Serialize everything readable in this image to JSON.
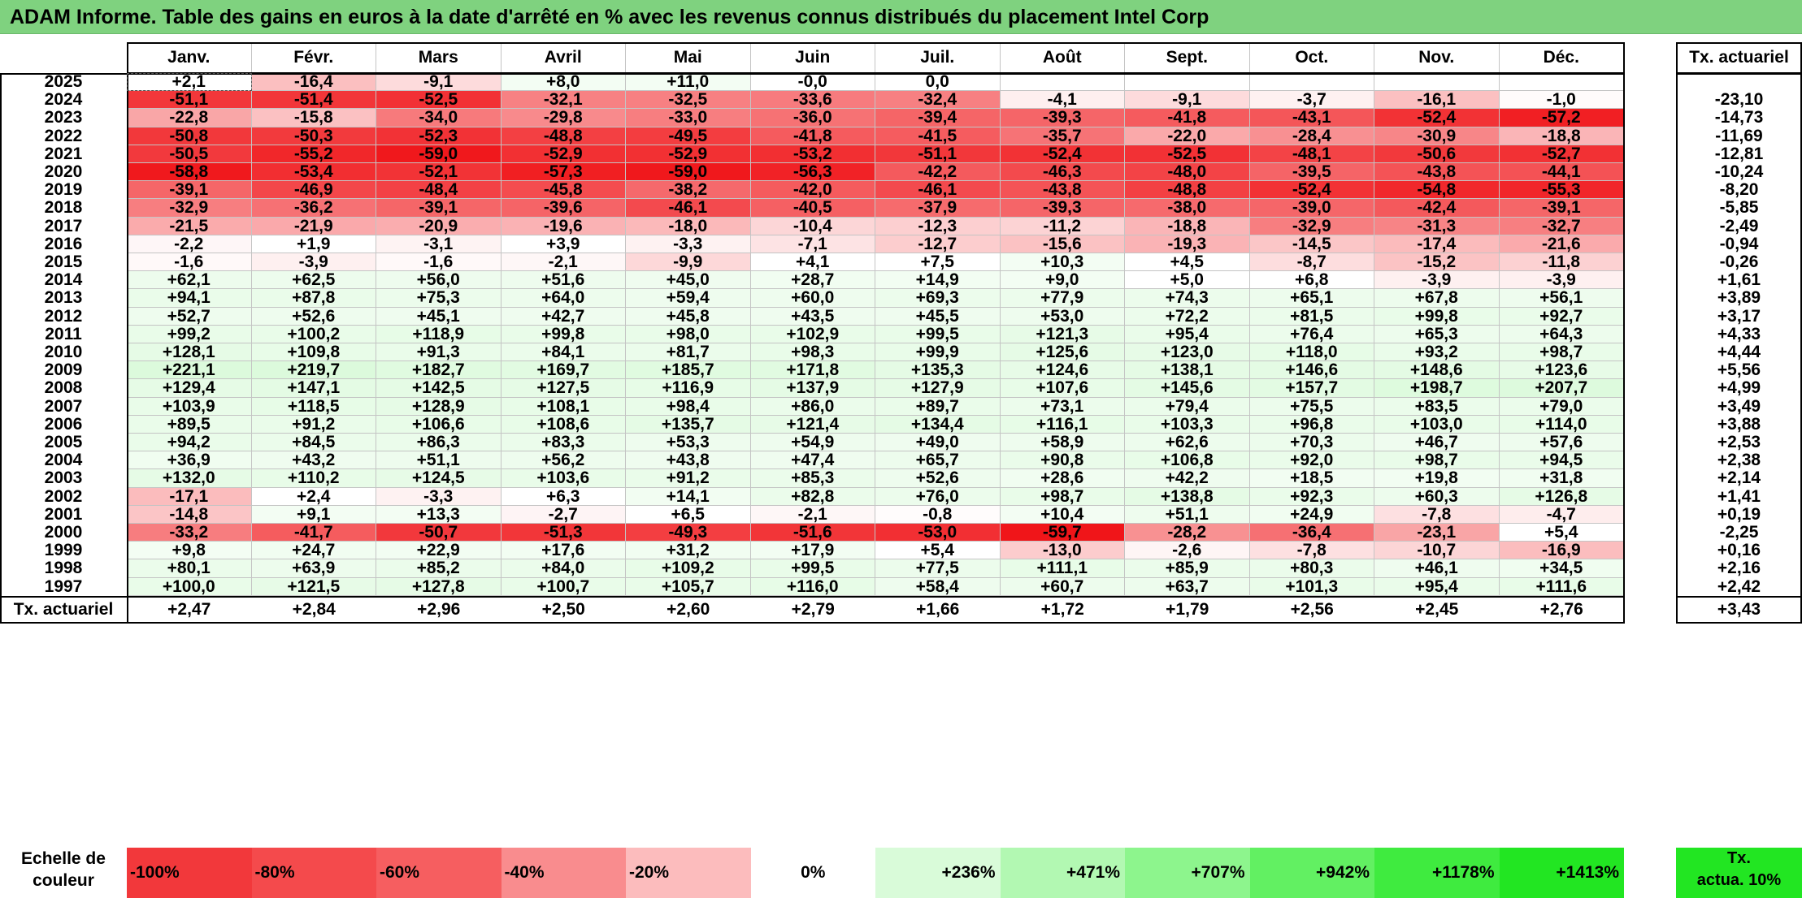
{
  "title": "ADAM Informe. Table des gains en euros à la date d'arrêté en % avec les revenus connus distribués du placement Intel Corp",
  "months": [
    "Janv.",
    "Févr.",
    "Mars",
    "Avril",
    "Mai",
    "Juin",
    "Juil.",
    "Août",
    "Sept.",
    "Oct.",
    "Nov.",
    "Déc."
  ],
  "tx_header": "Tx. actuariel",
  "rows": [
    {
      "year": "2025",
      "values": [
        "+2,1",
        "-16,4",
        "-9,1",
        "+8,0",
        "+11,0",
        "-0,0",
        "0,0",
        "",
        "",
        "",
        "",
        ""
      ],
      "tx": ""
    },
    {
      "year": "2024",
      "values": [
        "-51,1",
        "-51,4",
        "-52,5",
        "-32,1",
        "-32,5",
        "-33,6",
        "-32,4",
        "-4,1",
        "-9,1",
        "-3,7",
        "-16,1",
        "-1,0"
      ],
      "tx": "-23,10"
    },
    {
      "year": "2023",
      "values": [
        "-22,8",
        "-15,8",
        "-34,0",
        "-29,8",
        "-33,0",
        "-36,0",
        "-39,4",
        "-39,3",
        "-41,8",
        "-43,1",
        "-52,4",
        "-57,2"
      ],
      "tx": "-14,73"
    },
    {
      "year": "2022",
      "values": [
        "-50,8",
        "-50,3",
        "-52,3",
        "-48,8",
        "-49,5",
        "-41,8",
        "-41,5",
        "-35,7",
        "-22,0",
        "-28,4",
        "-30,9",
        "-18,8"
      ],
      "tx": "-11,69"
    },
    {
      "year": "2021",
      "values": [
        "-50,5",
        "-55,2",
        "-59,0",
        "-52,9",
        "-52,9",
        "-53,2",
        "-51,1",
        "-52,4",
        "-52,5",
        "-48,1",
        "-50,6",
        "-52,7"
      ],
      "tx": "-12,81"
    },
    {
      "year": "2020",
      "values": [
        "-58,8",
        "-53,4",
        "-52,1",
        "-57,3",
        "-59,0",
        "-56,3",
        "-42,2",
        "-46,3",
        "-48,0",
        "-39,5",
        "-43,8",
        "-44,1"
      ],
      "tx": "-10,24"
    },
    {
      "year": "2019",
      "values": [
        "-39,1",
        "-46,9",
        "-48,4",
        "-45,8",
        "-38,2",
        "-42,0",
        "-46,1",
        "-43,8",
        "-48,8",
        "-52,4",
        "-54,8",
        "-55,3"
      ],
      "tx": "-8,20"
    },
    {
      "year": "2018",
      "values": [
        "-32,9",
        "-36,2",
        "-39,1",
        "-39,6",
        "-46,1",
        "-40,5",
        "-37,9",
        "-39,3",
        "-38,0",
        "-39,0",
        "-42,4",
        "-39,1"
      ],
      "tx": "-5,85"
    },
    {
      "year": "2017",
      "values": [
        "-21,5",
        "-21,9",
        "-20,9",
        "-19,6",
        "-18,0",
        "-10,4",
        "-12,3",
        "-11,2",
        "-18,8",
        "-32,9",
        "-31,3",
        "-32,7"
      ],
      "tx": "-2,49"
    },
    {
      "year": "2016",
      "values": [
        "-2,2",
        "+1,9",
        "-3,1",
        "+3,9",
        "-3,3",
        "-7,1",
        "-12,7",
        "-15,6",
        "-19,3",
        "-14,5",
        "-17,4",
        "-21,6"
      ],
      "tx": "-0,94"
    },
    {
      "year": "2015",
      "values": [
        "-1,6",
        "-3,9",
        "-1,6",
        "-2,1",
        "-9,9",
        "+4,1",
        "+7,5",
        "+10,3",
        "+4,5",
        "-8,7",
        "-15,2",
        "-11,8"
      ],
      "tx": "-0,26"
    },
    {
      "year": "2014",
      "values": [
        "+62,1",
        "+62,5",
        "+56,0",
        "+51,6",
        "+45,0",
        "+28,7",
        "+14,9",
        "+9,0",
        "+5,0",
        "+6,8",
        "-3,9",
        "-3,9"
      ],
      "tx": "+1,61"
    },
    {
      "year": "2013",
      "values": [
        "+94,1",
        "+87,8",
        "+75,3",
        "+64,0",
        "+59,4",
        "+60,0",
        "+69,3",
        "+77,9",
        "+74,3",
        "+65,1",
        "+67,8",
        "+56,1"
      ],
      "tx": "+3,89"
    },
    {
      "year": "2012",
      "values": [
        "+52,7",
        "+52,6",
        "+45,1",
        "+42,7",
        "+45,8",
        "+43,5",
        "+45,5",
        "+53,0",
        "+72,2",
        "+81,5",
        "+99,8",
        "+92,7"
      ],
      "tx": "+3,17"
    },
    {
      "year": "2011",
      "values": [
        "+99,2",
        "+100,2",
        "+118,9",
        "+99,8",
        "+98,0",
        "+102,9",
        "+99,5",
        "+121,3",
        "+95,4",
        "+76,4",
        "+65,3",
        "+64,3"
      ],
      "tx": "+4,33"
    },
    {
      "year": "2010",
      "values": [
        "+128,1",
        "+109,8",
        "+91,3",
        "+84,1",
        "+81,7",
        "+98,3",
        "+99,9",
        "+125,6",
        "+123,0",
        "+118,0",
        "+93,2",
        "+98,7"
      ],
      "tx": "+4,44"
    },
    {
      "year": "2009",
      "values": [
        "+221,1",
        "+219,7",
        "+182,7",
        "+169,7",
        "+185,7",
        "+171,8",
        "+135,3",
        "+124,6",
        "+138,1",
        "+146,6",
        "+148,6",
        "+123,6"
      ],
      "tx": "+5,56"
    },
    {
      "year": "2008",
      "values": [
        "+129,4",
        "+147,1",
        "+142,5",
        "+127,5",
        "+116,9",
        "+137,9",
        "+127,9",
        "+107,6",
        "+145,6",
        "+157,7",
        "+198,7",
        "+207,7"
      ],
      "tx": "+4,99"
    },
    {
      "year": "2007",
      "values": [
        "+103,9",
        "+118,5",
        "+128,9",
        "+108,1",
        "+98,4",
        "+86,0",
        "+89,7",
        "+73,1",
        "+79,4",
        "+75,5",
        "+83,5",
        "+79,0"
      ],
      "tx": "+3,49"
    },
    {
      "year": "2006",
      "values": [
        "+89,5",
        "+91,2",
        "+106,6",
        "+108,6",
        "+135,7",
        "+121,4",
        "+134,4",
        "+116,1",
        "+103,3",
        "+96,8",
        "+103,0",
        "+114,0"
      ],
      "tx": "+3,88"
    },
    {
      "year": "2005",
      "values": [
        "+94,2",
        "+84,5",
        "+86,3",
        "+83,3",
        "+53,3",
        "+54,9",
        "+49,0",
        "+58,9",
        "+62,6",
        "+70,3",
        "+46,7",
        "+57,6"
      ],
      "tx": "+2,53"
    },
    {
      "year": "2004",
      "values": [
        "+36,9",
        "+43,2",
        "+51,1",
        "+56,2",
        "+43,8",
        "+47,4",
        "+65,7",
        "+90,8",
        "+106,8",
        "+92,0",
        "+98,7",
        "+94,5"
      ],
      "tx": "+2,38"
    },
    {
      "year": "2003",
      "values": [
        "+132,0",
        "+110,2",
        "+124,5",
        "+103,6",
        "+91,2",
        "+85,3",
        "+52,6",
        "+28,6",
        "+42,2",
        "+18,5",
        "+19,8",
        "+31,8"
      ],
      "tx": "+2,14"
    },
    {
      "year": "2002",
      "values": [
        "-17,1",
        "+2,4",
        "-3,3",
        "+6,3",
        "+14,1",
        "+82,8",
        "+76,0",
        "+98,7",
        "+138,8",
        "+92,3",
        "+60,3",
        "+126,8"
      ],
      "tx": "+1,41"
    },
    {
      "year": "2001",
      "values": [
        "-14,8",
        "+9,1",
        "+13,3",
        "-2,7",
        "+6,5",
        "-2,1",
        "-0,8",
        "+10,4",
        "+51,1",
        "+24,9",
        "-7,8",
        "-4,7"
      ],
      "tx": "+0,19"
    },
    {
      "year": "2000",
      "values": [
        "-33,2",
        "-41,7",
        "-50,7",
        "-51,3",
        "-49,3",
        "-51,6",
        "-53,0",
        "-59,7",
        "-28,2",
        "-36,4",
        "-23,1",
        "+5,4"
      ],
      "tx": "-2,25"
    },
    {
      "year": "1999",
      "values": [
        "+9,8",
        "+24,7",
        "+22,9",
        "+17,6",
        "+31,2",
        "+17,9",
        "+5,4",
        "-13,0",
        "-2,6",
        "-7,8",
        "-10,7",
        "-16,9"
      ],
      "tx": "+0,16"
    },
    {
      "year": "1998",
      "values": [
        "+80,1",
        "+63,9",
        "+85,2",
        "+84,0",
        "+109,2",
        "+99,5",
        "+77,5",
        "+111,1",
        "+85,9",
        "+80,3",
        "+46,1",
        "+34,5"
      ],
      "tx": "+2,16"
    },
    {
      "year": "1997",
      "values": [
        "+100,0",
        "+121,5",
        "+127,8",
        "+100,7",
        "+105,7",
        "+116,0",
        "+58,4",
        "+60,7",
        "+63,7",
        "+101,3",
        "+95,4",
        "+111,6"
      ],
      "tx": "+2,42"
    }
  ],
  "footer": {
    "label": "Tx. actuariel",
    "values": [
      "+2,47",
      "+2,84",
      "+2,96",
      "+2,50",
      "+2,60",
      "+2,79",
      "+1,66",
      "+1,72",
      "+1,79",
      "+2,56",
      "+2,45",
      "+2,76"
    ],
    "tx": "+3,43"
  },
  "scale": {
    "label_line1": "Echelle de",
    "label_line2": "couleur",
    "items": [
      {
        "text": "-100%",
        "color": "#f2383b"
      },
      {
        "text": "-80%",
        "color": "#f44a4c"
      },
      {
        "text": "-60%",
        "color": "#f65e60"
      },
      {
        "text": "-40%",
        "color": "#f98c8e"
      },
      {
        "text": "-20%",
        "color": "#fcbcbd"
      },
      {
        "text": "0%",
        "color": "#ffffff"
      },
      {
        "text": "+236%",
        "color": "#d9fbd9"
      },
      {
        "text": "+471%",
        "color": "#b2f8b2"
      },
      {
        "text": "+707%",
        "color": "#8df58d"
      },
      {
        "text": "+942%",
        "color": "#62f062"
      },
      {
        "text": "+1178%",
        "color": "#3feb3f"
      },
      {
        "text": "+1413%",
        "color": "#22e622"
      }
    ],
    "tx_line1": "Tx.",
    "tx_line2": "actua. 10%",
    "tx_color": "#22e622"
  }
}
